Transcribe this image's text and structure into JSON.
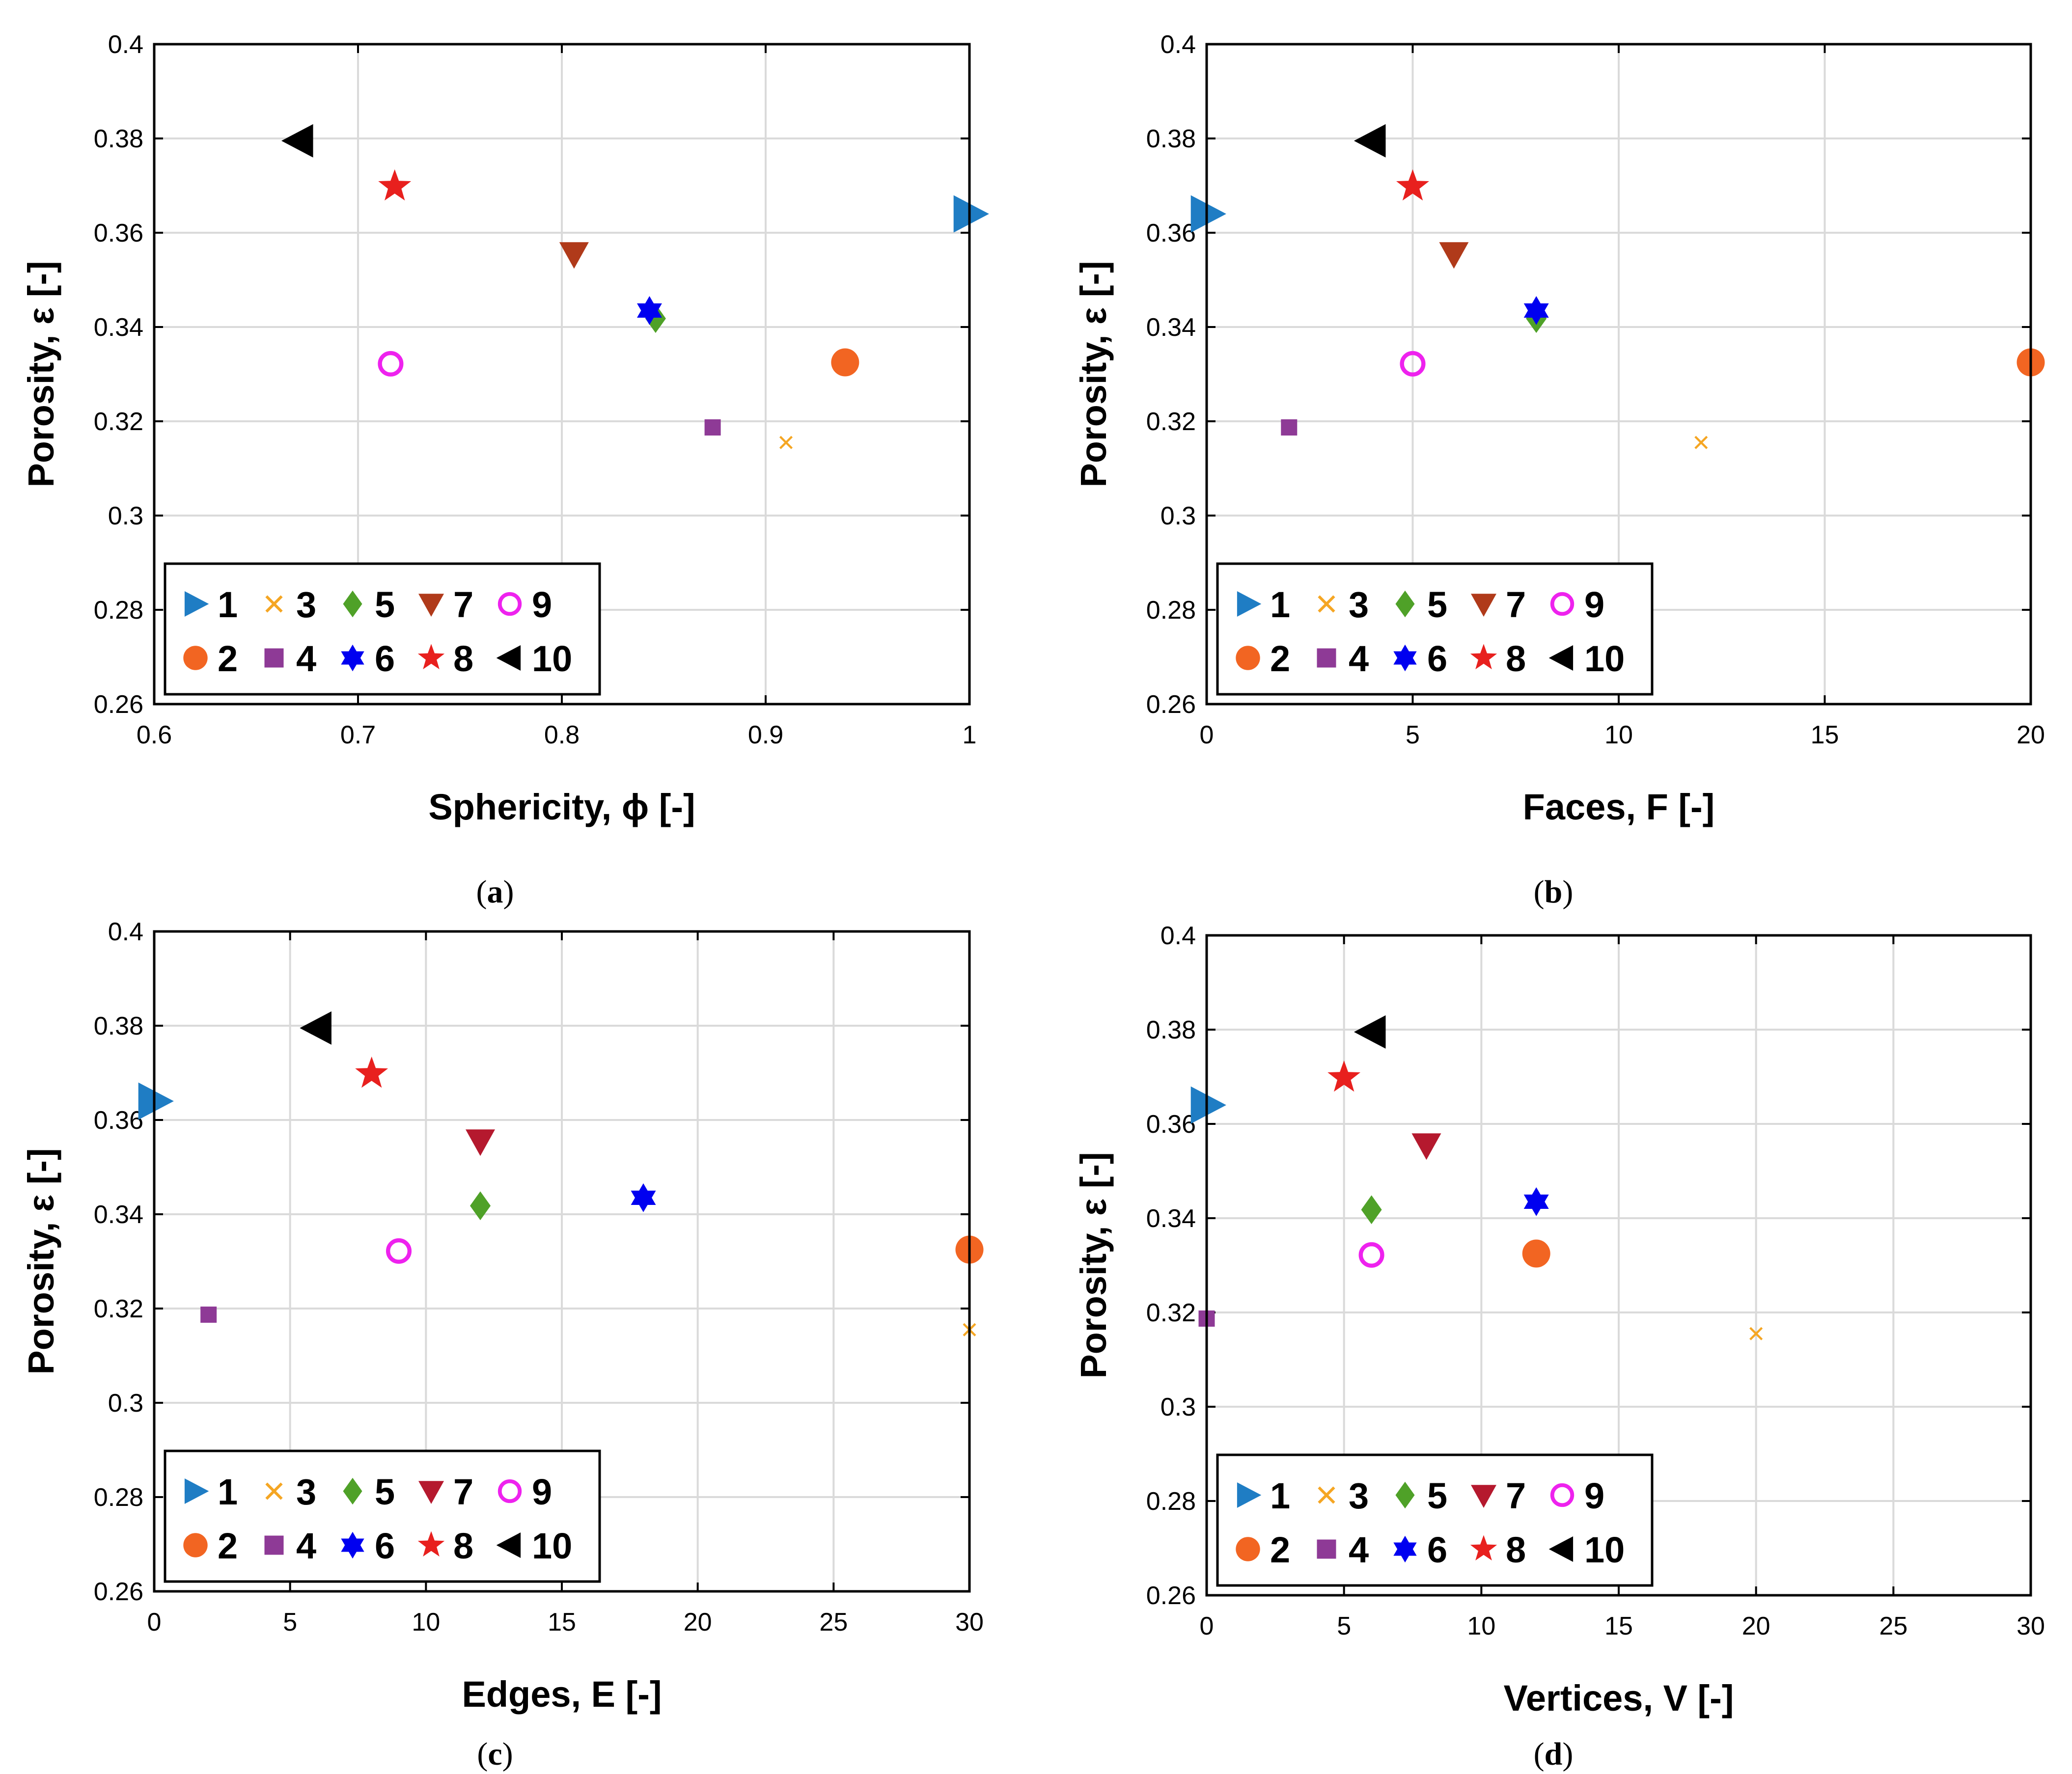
{
  "chart_data": [
    {
      "panel": "a",
      "type": "scatter",
      "caption_open": "(",
      "caption_letter": "a",
      "caption_close": ")",
      "ylabel": "Porosity, ε [-]",
      "xlabel": "Sphericity, ϕ [-]",
      "xlim": [
        0.6,
        1.0
      ],
      "ylim": [
        0.26,
        0.4
      ],
      "xticks": [
        0.6,
        0.7,
        0.8,
        0.9,
        1.0
      ],
      "xtick_labels": [
        "0.6",
        "0.7",
        "0.8",
        "0.9",
        "1"
      ],
      "yticks": [
        0.26,
        0.28,
        0.3,
        0.32,
        0.34,
        0.36,
        0.38,
        0.4
      ],
      "ytick_labels": [
        "0.26",
        "0.28",
        "0.3",
        "0.32",
        "0.34",
        "0.36",
        "0.38",
        "0.4"
      ],
      "grid": true,
      "legend_placement": "bottom-left",
      "points": [
        {
          "id": "1",
          "x": 1.0,
          "y": 0.364
        },
        {
          "id": "2",
          "x": 0.939,
          "y": 0.3325
        },
        {
          "id": "3",
          "x": 0.91,
          "y": 0.3155
        },
        {
          "id": "4",
          "x": 0.874,
          "y": 0.3187
        },
        {
          "id": "5",
          "x": 0.846,
          "y": 0.3418
        },
        {
          "id": "6",
          "x": 0.843,
          "y": 0.3435
        },
        {
          "id": "7",
          "x": 0.806,
          "y": 0.3555
        },
        {
          "id": "8",
          "x": 0.718,
          "y": 0.3698
        },
        {
          "id": "9",
          "x": 0.716,
          "y": 0.3322
        },
        {
          "id": "10",
          "x": 0.671,
          "y": 0.3795
        }
      ]
    },
    {
      "panel": "b",
      "type": "scatter",
      "caption_open": "(",
      "caption_letter": "b",
      "caption_close": ")",
      "ylabel": "Porosity, ε [-]",
      "xlabel": "Faces, F [-]",
      "xlim": [
        0,
        20
      ],
      "ylim": [
        0.26,
        0.4
      ],
      "xticks": [
        0,
        5,
        10,
        15,
        20
      ],
      "xtick_labels": [
        "0",
        "5",
        "10",
        "15",
        "20"
      ],
      "yticks": [
        0.26,
        0.28,
        0.3,
        0.32,
        0.34,
        0.36,
        0.38,
        0.4
      ],
      "ytick_labels": [
        "0.26",
        "0.28",
        "0.3",
        "0.32",
        "0.34",
        "0.36",
        "0.38",
        "0.4"
      ],
      "grid": true,
      "legend_placement": "bottom-left",
      "points": [
        {
          "id": "1",
          "x": 0,
          "y": 0.364
        },
        {
          "id": "2",
          "x": 20,
          "y": 0.3325
        },
        {
          "id": "3",
          "x": 12,
          "y": 0.3155
        },
        {
          "id": "4",
          "x": 2,
          "y": 0.3187
        },
        {
          "id": "5",
          "x": 8,
          "y": 0.3418
        },
        {
          "id": "6",
          "x": 8,
          "y": 0.3435
        },
        {
          "id": "7",
          "x": 6,
          "y": 0.3555
        },
        {
          "id": "8",
          "x": 5,
          "y": 0.3698
        },
        {
          "id": "9",
          "x": 5,
          "y": 0.3322
        },
        {
          "id": "10",
          "x": 4,
          "y": 0.3795
        }
      ]
    },
    {
      "panel": "c",
      "type": "scatter",
      "caption_open": "(",
      "caption_letter": "c",
      "caption_close": ")",
      "ylabel": "Porosity, ε [-]",
      "xlabel": "Edges, E [-]",
      "xlim": [
        0,
        30
      ],
      "ylim": [
        0.26,
        0.4
      ],
      "xticks": [
        0,
        5,
        10,
        15,
        20,
        25,
        30
      ],
      "xtick_labels": [
        "0",
        "5",
        "10",
        "15",
        "20",
        "25",
        "30"
      ],
      "yticks": [
        0.26,
        0.28,
        0.3,
        0.32,
        0.34,
        0.36,
        0.38,
        0.4
      ],
      "ytick_labels": [
        "0.26",
        "0.28",
        "0.3",
        "0.32",
        "0.34",
        "0.36",
        "0.38",
        "0.4"
      ],
      "grid": true,
      "legend_placement": "bottom-left",
      "points": [
        {
          "id": "1",
          "x": 0,
          "y": 0.364
        },
        {
          "id": "2",
          "x": 30,
          "y": 0.3325
        },
        {
          "id": "3",
          "x": 30,
          "y": 0.3155
        },
        {
          "id": "4",
          "x": 2,
          "y": 0.3187
        },
        {
          "id": "5",
          "x": 12,
          "y": 0.3418
        },
        {
          "id": "6",
          "x": 18,
          "y": 0.3435
        },
        {
          "id": "7",
          "x": 12,
          "y": 0.3555
        },
        {
          "id": "8",
          "x": 8,
          "y": 0.3698
        },
        {
          "id": "9",
          "x": 9,
          "y": 0.3322
        },
        {
          "id": "10",
          "x": 6,
          "y": 0.3795
        }
      ]
    },
    {
      "panel": "d",
      "type": "scatter",
      "caption_open": "(",
      "caption_letter": "d",
      "caption_close": ")",
      "ylabel": "Porosity, ε [-]",
      "xlabel": "Vertices, V [-]",
      "xlim": [
        0,
        30
      ],
      "ylim": [
        0.26,
        0.4
      ],
      "xticks": [
        0,
        5,
        10,
        15,
        20,
        25,
        30
      ],
      "xtick_labels": [
        "0",
        "5",
        "10",
        "15",
        "20",
        "25",
        "30"
      ],
      "yticks": [
        0.26,
        0.28,
        0.3,
        0.32,
        0.34,
        0.36,
        0.38,
        0.4
      ],
      "ytick_labels": [
        "0.26",
        "0.28",
        "0.3",
        "0.32",
        "0.34",
        "0.36",
        "0.38",
        "0.4"
      ],
      "grid": true,
      "legend_placement": "bottom-left",
      "points": [
        {
          "id": "1",
          "x": 0,
          "y": 0.364
        },
        {
          "id": "2",
          "x": 12,
          "y": 0.3325
        },
        {
          "id": "3",
          "x": 20,
          "y": 0.3155
        },
        {
          "id": "4",
          "x": 0,
          "y": 0.3187
        },
        {
          "id": "5",
          "x": 6,
          "y": 0.3418
        },
        {
          "id": "6",
          "x": 12,
          "y": 0.3435
        },
        {
          "id": "7",
          "x": 8,
          "y": 0.3555
        },
        {
          "id": "8",
          "x": 5,
          "y": 0.3698
        },
        {
          "id": "9",
          "x": 6,
          "y": 0.3322
        },
        {
          "id": "10",
          "x": 6,
          "y": 0.3795
        }
      ]
    }
  ],
  "legend": [
    {
      "id": "1",
      "label": "1",
      "marker": "triangle-right",
      "color": "#1f7dc4"
    },
    {
      "id": "2",
      "label": "2",
      "marker": "circle",
      "color": "#f26522"
    },
    {
      "id": "3",
      "label": "3",
      "marker": "x",
      "color": "#f5a623"
    },
    {
      "id": "4",
      "label": "4",
      "marker": "square",
      "color": "#8e3a96"
    },
    {
      "id": "5",
      "label": "5",
      "marker": "diamond",
      "color": "#4fa128"
    },
    {
      "id": "6",
      "label": "6",
      "marker": "hexagram",
      "color": "#0000f0"
    },
    {
      "id": "7",
      "label": "7",
      "marker": "triangle-down",
      "color": "#b03a1a"
    },
    {
      "id": "8",
      "label": "8",
      "marker": "pentagram",
      "color": "#e8201e"
    },
    {
      "id": "9",
      "label": "9",
      "marker": "circle-open",
      "color": "#ee22ee"
    },
    {
      "id": "10",
      "label": "10",
      "marker": "triangle-left",
      "color": "#000000"
    }
  ],
  "colors": {
    "grid": "#dadada",
    "frame": "#000000",
    "marker7_alt": "#b5192e"
  }
}
